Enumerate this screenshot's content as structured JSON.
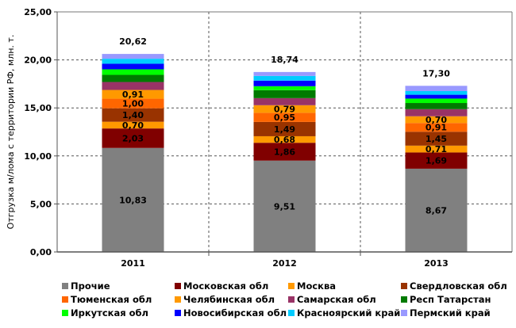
{
  "chart_data": {
    "type": "bar",
    "stacked": true,
    "title": "",
    "xlabel": "",
    "ylabel": "Отгрузка м/лома с территории РФ, млн. т.",
    "ylim": [
      0,
      25
    ],
    "yticks": [
      "0,00",
      "5,00",
      "10,00",
      "15,00",
      "20,00",
      "25,00"
    ],
    "ytick_values": [
      0,
      5,
      10,
      15,
      20,
      25
    ],
    "grid": true,
    "legend_position": "bottom",
    "categories": [
      "2011",
      "2012",
      "2013"
    ],
    "totals": [
      20.62,
      18.74,
      17.3
    ],
    "total_labels": [
      "20,62",
      "18,74",
      "17,30"
    ],
    "series": [
      {
        "name": "Прочие",
        "color": "#808080",
        "values": [
          10.83,
          9.51,
          8.67
        ],
        "labels": [
          "10,83",
          "9,51",
          "8,67"
        ]
      },
      {
        "name": "Московская обл",
        "color": "#800000",
        "values": [
          2.03,
          1.86,
          1.69
        ],
        "labels": [
          "2,03",
          "1,86",
          "1,69"
        ]
      },
      {
        "name": "Москва",
        "color": "#FF9900",
        "values": [
          0.7,
          0.68,
          0.71
        ],
        "labels": [
          "0,70",
          "0,68",
          "0,71"
        ]
      },
      {
        "name": "Свердловская обл",
        "color": "#993300",
        "values": [
          1.4,
          1.49,
          1.45
        ],
        "labels": [
          "1,40",
          "1,49",
          "1,45"
        ]
      },
      {
        "name": "Тюменская обл",
        "color": "#FF6600",
        "values": [
          1.0,
          0.95,
          0.91
        ],
        "labels": [
          "1,00",
          "0,95",
          "0,91"
        ]
      },
      {
        "name": "Челябинская обл",
        "color": "#FF9900",
        "values": [
          0.91,
          0.79,
          0.7
        ],
        "labels": [
          "0,91",
          "0,79",
          "0,70"
        ]
      },
      {
        "name": "Самарская обл",
        "color": "#993366",
        "values": [
          0.83,
          0.74,
          0.74
        ]
      },
      {
        "name": "Респ Татарстан",
        "color": "#007A00",
        "values": [
          0.74,
          0.83,
          0.64
        ]
      },
      {
        "name": "Иркутская обл",
        "color": "#00FF00",
        "values": [
          0.58,
          0.41,
          0.46
        ]
      },
      {
        "name": "Новосибирская обл",
        "color": "#0000FF",
        "values": [
          0.58,
          0.58,
          0.4
        ]
      },
      {
        "name": "Красноярский край",
        "color": "#00CCFF",
        "values": [
          0.52,
          0.49,
          0.38
        ]
      },
      {
        "name": "Пермский край",
        "color": "#9999FF",
        "values": [
          0.5,
          0.41,
          0.55
        ]
      }
    ]
  },
  "legend": {
    "items": [
      {
        "label": "Прочие",
        "color": "#808080"
      },
      {
        "label": "Московская обл",
        "color": "#800000"
      },
      {
        "label": "Москва",
        "color": "#FF9900"
      },
      {
        "label": "Свердловская обл",
        "color": "#993300"
      },
      {
        "label": "Тюменская обл",
        "color": "#FF6600"
      },
      {
        "label": "Челябинская обл",
        "color": "#FF9900"
      },
      {
        "label": "Самарская обл",
        "color": "#993366"
      },
      {
        "label": "Респ Татарстан",
        "color": "#007A00"
      },
      {
        "label": "Иркутская обл",
        "color": "#00FF00"
      },
      {
        "label": "Новосибирская обл",
        "color": "#0000FF"
      },
      {
        "label": "Красноярский край",
        "color": "#00CCFF"
      },
      {
        "label": "Пермский край",
        "color": "#9999FF"
      }
    ]
  }
}
